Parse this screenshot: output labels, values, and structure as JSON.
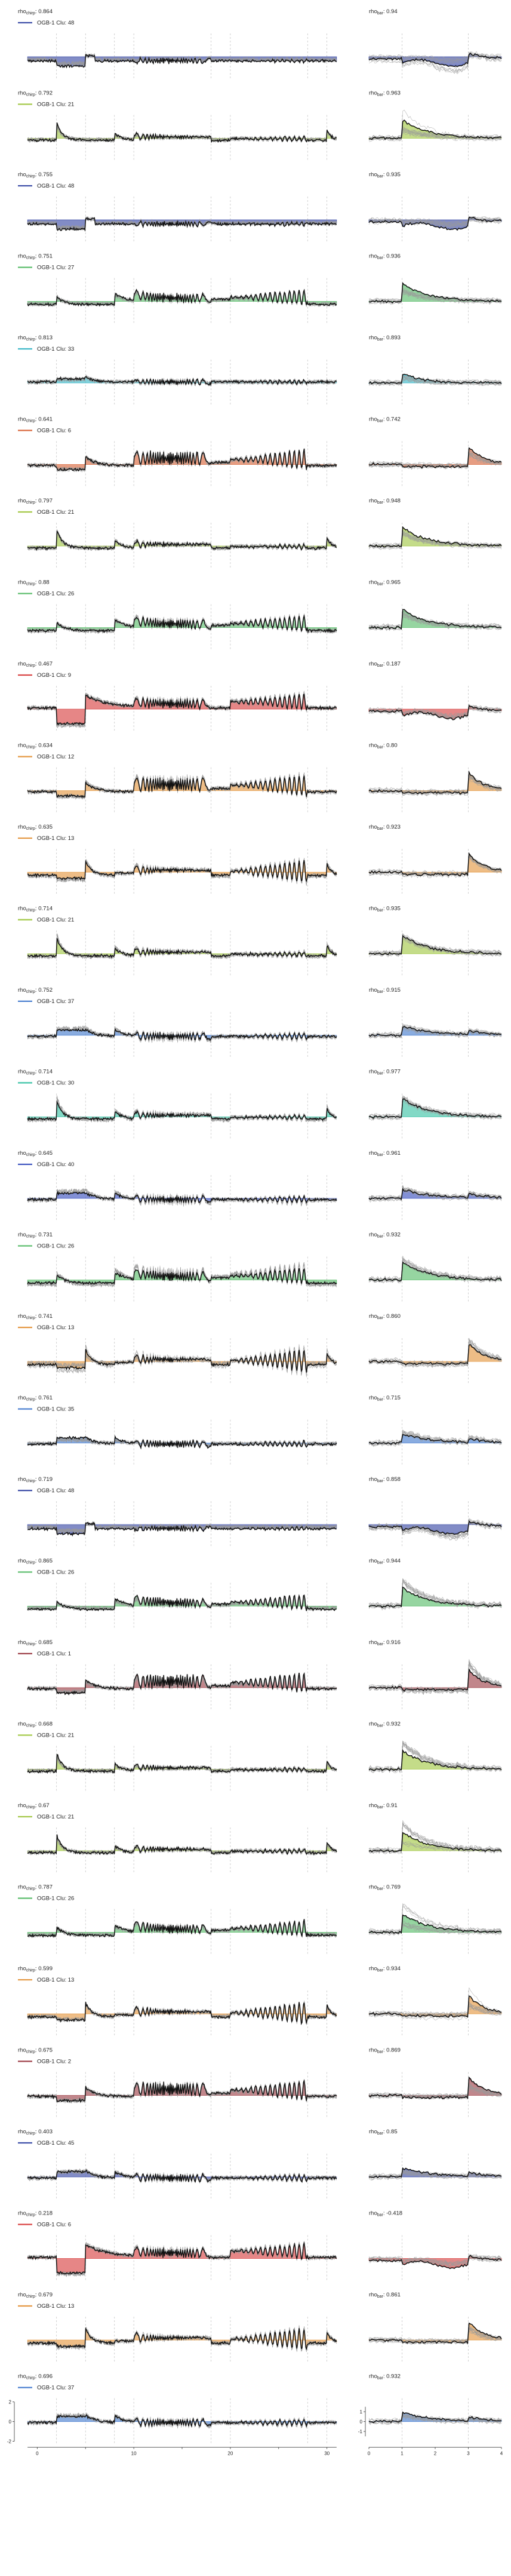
{
  "chart_data": {
    "type": "line",
    "title": "",
    "panels": [
      {
        "rho_chirp": "0.864",
        "rho_bar": "0.94",
        "legend": "OGB-1 Clu: 48",
        "color": "#3F4FA8",
        "shape": "neg"
      },
      {
        "rho_chirp": "0.792",
        "rho_bar": "0.963",
        "legend": "OGB-1 Clu: 21",
        "color": "#A5C94A",
        "shape": "on"
      },
      {
        "rho_chirp": "0.755",
        "rho_bar": "0.935",
        "legend": "OGB-1 Clu: 48",
        "color": "#3F4FA8",
        "shape": "neg"
      },
      {
        "rho_chirp": "0.751",
        "rho_bar": "0.936",
        "legend": "OGB-1 Clu: 27",
        "color": "#5DBE6E",
        "shape": "sust"
      },
      {
        "rho_chirp": "0.813",
        "rho_bar": "0.893",
        "legend": "OGB-1 Clu: 33",
        "color": "#3FB8C8",
        "shape": "flat"
      },
      {
        "rho_chirp": "0.641",
        "rho_bar": "0.742",
        "legend": "OGB-1 Clu: 6",
        "color": "#D9693F",
        "shape": "off"
      },
      {
        "rho_chirp": "0.797",
        "rho_bar": "0.948",
        "legend": "OGB-1 Clu: 21",
        "color": "#A5C94A",
        "shape": "on"
      },
      {
        "rho_chirp": "0.88",
        "rho_bar": "0.965",
        "legend": "OGB-1 Clu: 26",
        "color": "#5DBE6E",
        "shape": "sust"
      },
      {
        "rho_chirp": "0.467",
        "rho_bar": "0.187",
        "legend": "OGB-1 Clu: 9",
        "color": "#D94545",
        "shape": "supp"
      },
      {
        "rho_chirp": "0.634",
        "rho_bar": "0.80",
        "legend": "OGB-1 Clu: 12",
        "color": "#E59A45",
        "shape": "off"
      },
      {
        "rho_chirp": "0.635",
        "rho_bar": "0.923",
        "legend": "OGB-1 Clu: 13",
        "color": "#E59A45",
        "shape": "offt"
      },
      {
        "rho_chirp": "0.714",
        "rho_bar": "0.935",
        "legend": "OGB-1 Clu: 21",
        "color": "#A5C94A",
        "shape": "on"
      },
      {
        "rho_chirp": "0.752",
        "rho_bar": "0.915",
        "legend": "OGB-1 Clu: 37",
        "color": "#4A7FD0",
        "shape": "mixed"
      },
      {
        "rho_chirp": "0.714",
        "rho_bar": "0.977",
        "legend": "OGB-1 Clu: 30",
        "color": "#3FC4A8",
        "shape": "on"
      },
      {
        "rho_chirp": "0.645",
        "rho_bar": "0.961",
        "legend": "OGB-1 Clu: 40",
        "color": "#3F55C0",
        "shape": "mixed"
      },
      {
        "rho_chirp": "0.731",
        "rho_bar": "0.932",
        "legend": "OGB-1 Clu: 26",
        "color": "#5DBE6E",
        "shape": "sust"
      },
      {
        "rho_chirp": "0.741",
        "rho_bar": "0.860",
        "legend": "OGB-1 Clu: 13",
        "color": "#E59A45",
        "shape": "offt"
      },
      {
        "rho_chirp": "0.761",
        "rho_bar": "0.715",
        "legend": "OGB-1 Clu: 35",
        "color": "#4A7FD0",
        "shape": "mixed"
      },
      {
        "rho_chirp": "0.719",
        "rho_bar": "0.858",
        "legend": "OGB-1 Clu: 48",
        "color": "#3F4FA8",
        "shape": "neg"
      },
      {
        "rho_chirp": "0.865",
        "rho_bar": "0.944",
        "legend": "OGB-1 Clu: 26",
        "color": "#5DBE6E",
        "shape": "sust"
      },
      {
        "rho_chirp": "0.685",
        "rho_bar": "0.916",
        "legend": "OGB-1 Clu: 1",
        "color": "#A0454D",
        "shape": "off"
      },
      {
        "rho_chirp": "0.668",
        "rho_bar": "0.932",
        "legend": "OGB-1 Clu: 21",
        "color": "#A5C94A",
        "shape": "on"
      },
      {
        "rho_chirp": "0.67",
        "rho_bar": "0.91",
        "legend": "OGB-1 Clu: 21",
        "color": "#A5C94A",
        "shape": "on"
      },
      {
        "rho_chirp": "0.787",
        "rho_bar": "0.769",
        "legend": "OGB-1 Clu: 26",
        "color": "#5DBE6E",
        "shape": "sust"
      },
      {
        "rho_chirp": "0.599",
        "rho_bar": "0.934",
        "legend": "OGB-1 Clu: 13",
        "color": "#E59A45",
        "shape": "offt"
      },
      {
        "rho_chirp": "0.675",
        "rho_bar": "0.869",
        "legend": "OGB-1 Clu: 2",
        "color": "#A0454D",
        "shape": "off"
      },
      {
        "rho_chirp": "0.403",
        "rho_bar": "0.85",
        "legend": "OGB-1 Clu: 45",
        "color": "#3F4FA8",
        "shape": "mixed"
      },
      {
        "rho_chirp": "0.218",
        "rho_bar": "-0.418",
        "legend": "OGB-1 Clu: 6",
        "color": "#D94545",
        "shape": "supp"
      },
      {
        "rho_chirp": "0.679",
        "rho_bar": "0.861",
        "legend": "OGB-1 Clu: 13",
        "color": "#E59A45",
        "shape": "offt"
      },
      {
        "rho_chirp": "0.696",
        "rho_bar": "0.932",
        "legend": "OGB-1 Clu: 37",
        "color": "#4A7FD0",
        "shape": "mixed"
      }
    ],
    "chirp_x_ticks": [
      "0",
      "10",
      "20",
      "30"
    ],
    "chirp_y_ticks": [
      "-2",
      "0",
      "2"
    ],
    "bar_x_ticks": [
      "0",
      "1",
      "2",
      "3",
      "4"
    ],
    "bar_y_ticks": [
      "-1",
      "0",
      "1"
    ],
    "xlim_chirp": [
      -2,
      32
    ],
    "xlim_bar": [
      0,
      4
    ],
    "ylim": [
      -2,
      2
    ],
    "grid": false,
    "legend_position": "top-left"
  },
  "labels": {
    "rho_prefix": "rho",
    "chirp_sub": "chirp",
    "bar_sub": "bar"
  }
}
